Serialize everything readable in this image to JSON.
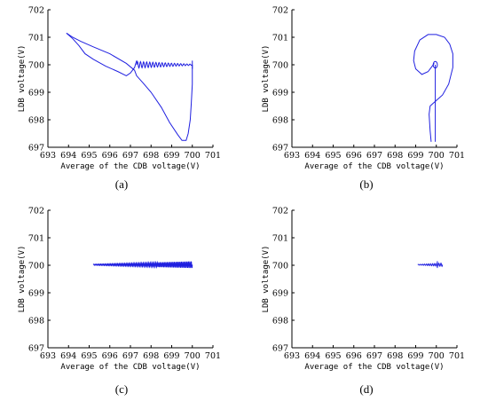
{
  "chart_data": [
    {
      "type": "line",
      "caption": "(a)",
      "xlabel": "Average of the CDB voltage(V)",
      "ylabel": "LDB voltage(V)",
      "xlim": [
        693,
        701
      ],
      "ylim": [
        697,
        702
      ],
      "xticks": [
        693,
        694,
        695,
        696,
        697,
        698,
        699,
        700,
        701
      ],
      "yticks": [
        697,
        698,
        699,
        700,
        701,
        702
      ],
      "series": [
        {
          "style": "path",
          "x": [
            693.9,
            694.2,
            694.6,
            695.2,
            696.0,
            696.8,
            697.2,
            697.3,
            697.6,
            698.0,
            698.5,
            698.9,
            699.3,
            699.5,
            699.7,
            699.8,
            699.9,
            699.95,
            700.0,
            700.0,
            700.0
          ],
          "y": [
            701.15,
            701.0,
            700.85,
            700.65,
            700.4,
            700.05,
            699.8,
            699.6,
            699.35,
            699.0,
            698.45,
            697.9,
            697.45,
            697.25,
            697.25,
            697.5,
            698.0,
            698.6,
            699.3,
            699.8,
            700.0
          ]
        },
        {
          "style": "path",
          "x": [
            693.9,
            694.2,
            694.5,
            694.8,
            695.2,
            695.8,
            696.4,
            696.8,
            697.0,
            697.2,
            697.3
          ],
          "y": [
            701.15,
            700.95,
            700.7,
            700.4,
            700.2,
            699.95,
            699.75,
            699.6,
            699.7,
            699.9,
            700.15
          ]
        },
        {
          "style": "oscillation",
          "x_start": 697.3,
          "x_end": 700.0,
          "y_center": 700.0,
          "amp_start": 0.12,
          "amp_end": 0.02,
          "cycles": 18
        },
        {
          "style": "vertical",
          "x": 700.0,
          "y_range": [
            699.85,
            700.15
          ]
        }
      ]
    },
    {
      "type": "line",
      "caption": "(b)",
      "xlabel": "Average of the CDB voltage(V)",
      "ylabel": "LDB voltage(V)",
      "xlim": [
        693,
        701
      ],
      "ylim": [
        697,
        702
      ],
      "xticks": [
        693,
        694,
        695,
        696,
        697,
        698,
        699,
        700,
        701
      ],
      "yticks": [
        697,
        698,
        699,
        700,
        701,
        702
      ],
      "series": [
        {
          "style": "path",
          "x": [
            699.75,
            699.7,
            699.65,
            699.7,
            700.0,
            700.3,
            700.6,
            700.8,
            700.8,
            700.65,
            700.4,
            700.0,
            699.6,
            699.2,
            698.95,
            698.9,
            699.0,
            699.3,
            699.6,
            699.8,
            699.9
          ],
          "y": [
            697.2,
            697.6,
            698.2,
            698.5,
            698.7,
            698.9,
            699.3,
            699.9,
            700.4,
            700.75,
            701.0,
            701.1,
            701.1,
            700.9,
            700.5,
            700.15,
            699.85,
            699.65,
            699.75,
            699.95,
            700.05
          ]
        },
        {
          "style": "loop",
          "x_center": 699.95,
          "y_center": 700.0,
          "rx": 0.1,
          "ry": 0.12
        },
        {
          "style": "vertical",
          "x": 699.95,
          "y_range": [
            697.2,
            700.0
          ]
        }
      ]
    },
    {
      "type": "line",
      "caption": "(c)",
      "xlabel": "Average of the CDB voltage(V)",
      "ylabel": "LDB voltage(V)",
      "xlim": [
        693,
        701
      ],
      "ylim": [
        697,
        702
      ],
      "xticks": [
        693,
        694,
        695,
        696,
        697,
        698,
        699,
        700,
        701
      ],
      "yticks": [
        697,
        698,
        699,
        700,
        701,
        702
      ],
      "series": [
        {
          "style": "oscillation",
          "x_start": 695.2,
          "x_end": 700.0,
          "y_center": 700.02,
          "amp_start": 0.02,
          "amp_end": 0.12,
          "cycles": 70
        }
      ]
    },
    {
      "type": "line",
      "caption": "(d)",
      "xlabel": "Average of the CDB voltage(V)",
      "ylabel": "LDB voltage(V)",
      "xlim": [
        693,
        701
      ],
      "ylim": [
        697,
        702
      ],
      "xticks": [
        693,
        694,
        695,
        696,
        697,
        698,
        699,
        700,
        701
      ],
      "yticks": [
        697,
        698,
        699,
        700,
        701,
        702
      ],
      "series": [
        {
          "style": "oscillation",
          "x_start": 699.1,
          "x_end": 700.3,
          "y_center": 700.02,
          "amp_start": 0.01,
          "amp_end": 0.06,
          "cycles": 12
        },
        {
          "style": "vertical",
          "x": 700.05,
          "y_range": [
            699.9,
            700.15
          ]
        }
      ]
    }
  ]
}
